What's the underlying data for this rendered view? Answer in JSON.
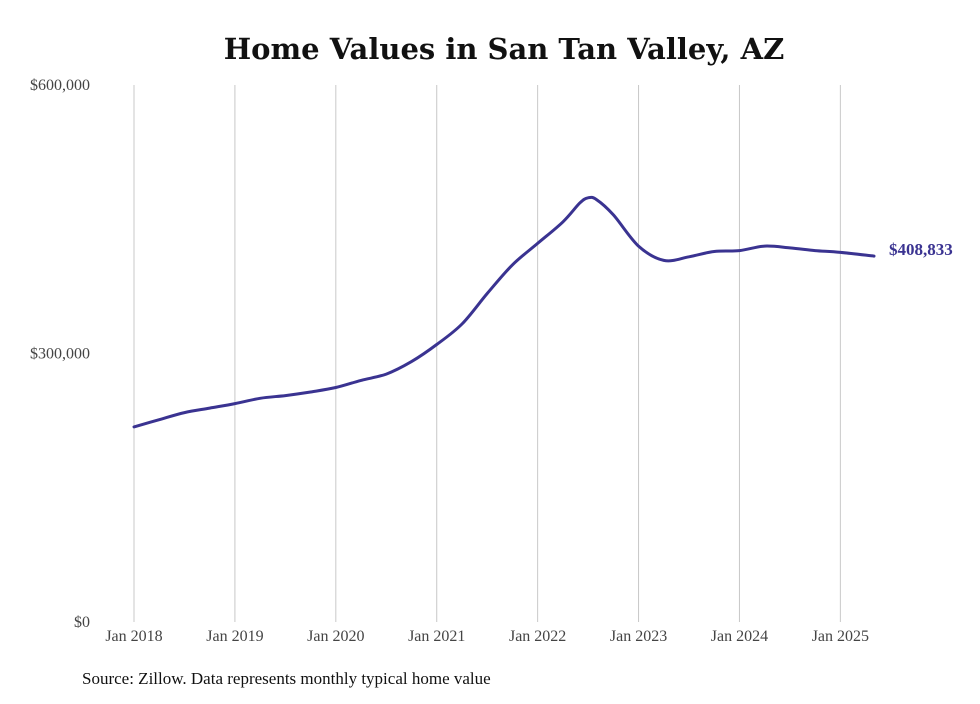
{
  "chart_data": {
    "type": "line",
    "title": "Home Values in San Tan Valley, AZ",
    "source": "Source: Zillow. Data represents monthly typical home value",
    "xlabel": "",
    "ylabel": "",
    "ylim": [
      0,
      600000
    ],
    "xlim": [
      "2018-01",
      "2025-05"
    ],
    "grid": "vertical",
    "y_ticks": [
      {
        "value": 0,
        "label": "$0"
      },
      {
        "value": 300000,
        "label": "$300,000"
      },
      {
        "value": 600000,
        "label": "$600,000"
      }
    ],
    "x_ticks": [
      {
        "date": "2018-01",
        "label": "Jan 2018"
      },
      {
        "date": "2019-01",
        "label": "Jan 2019"
      },
      {
        "date": "2020-01",
        "label": "Jan 2020"
      },
      {
        "date": "2021-01",
        "label": "Jan 2021"
      },
      {
        "date": "2022-01",
        "label": "Jan 2022"
      },
      {
        "date": "2023-01",
        "label": "Jan 2023"
      },
      {
        "date": "2024-01",
        "label": "Jan 2024"
      },
      {
        "date": "2025-01",
        "label": "Jan 2025"
      }
    ],
    "series": [
      {
        "color": "#3a3391",
        "end_label": "$408,833",
        "points": [
          {
            "x": "2018-01",
            "y": 218000
          },
          {
            "x": "2018-04",
            "y": 226000
          },
          {
            "x": "2018-07",
            "y": 234000
          },
          {
            "x": "2018-10",
            "y": 239000
          },
          {
            "x": "2019-01",
            "y": 244000
          },
          {
            "x": "2019-04",
            "y": 250000
          },
          {
            "x": "2019-07",
            "y": 253000
          },
          {
            "x": "2019-10",
            "y": 257000
          },
          {
            "x": "2020-01",
            "y": 262000
          },
          {
            "x": "2020-04",
            "y": 270000
          },
          {
            "x": "2020-07",
            "y": 277000
          },
          {
            "x": "2020-10",
            "y": 291000
          },
          {
            "x": "2021-01",
            "y": 310000
          },
          {
            "x": "2021-04",
            "y": 333000
          },
          {
            "x": "2021-07",
            "y": 367000
          },
          {
            "x": "2021-10",
            "y": 399000
          },
          {
            "x": "2022-01",
            "y": 423000
          },
          {
            "x": "2022-04",
            "y": 447000
          },
          {
            "x": "2022-06",
            "y": 468000
          },
          {
            "x": "2022-07",
            "y": 474000
          },
          {
            "x": "2022-08",
            "y": 472000
          },
          {
            "x": "2022-10",
            "y": 455000
          },
          {
            "x": "2023-01",
            "y": 420000
          },
          {
            "x": "2023-04",
            "y": 404000
          },
          {
            "x": "2023-07",
            "y": 408000
          },
          {
            "x": "2023-10",
            "y": 414000
          },
          {
            "x": "2024-01",
            "y": 415000
          },
          {
            "x": "2024-04",
            "y": 420000
          },
          {
            "x": "2024-07",
            "y": 418000
          },
          {
            "x": "2024-10",
            "y": 415000
          },
          {
            "x": "2025-01",
            "y": 413000
          },
          {
            "x": "2025-05",
            "y": 408833
          }
        ]
      }
    ]
  }
}
